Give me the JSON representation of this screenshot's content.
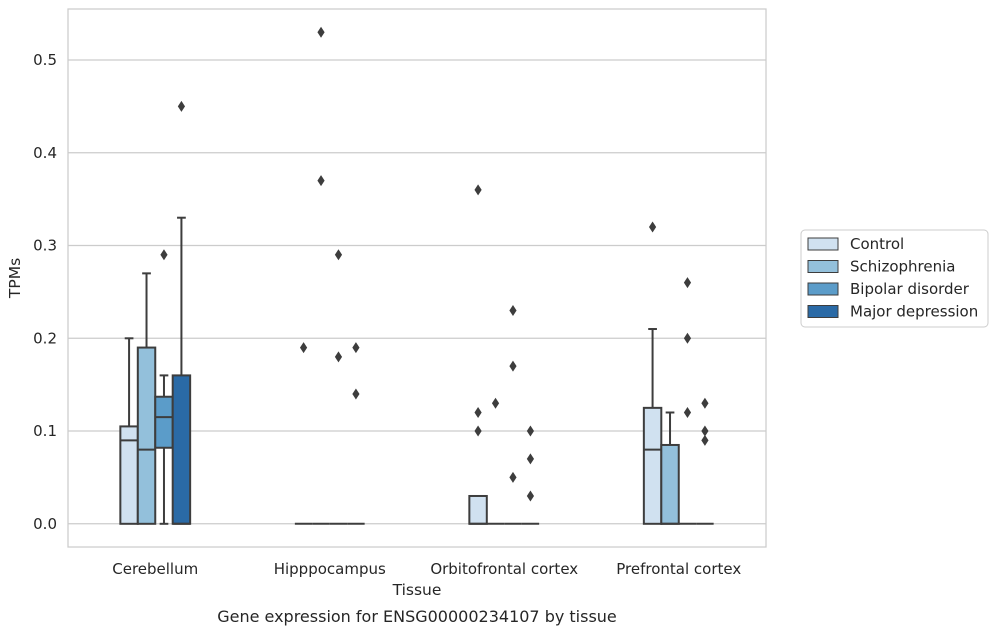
{
  "chart_data": {
    "type": "box",
    "title": "",
    "caption": "Gene expression for ENSG00000234107 by tissue",
    "xlabel": "Tissue",
    "ylabel": "TPMs",
    "ylim": [
      -0.025,
      0.555
    ],
    "yticks": [
      0.0,
      0.1,
      0.2,
      0.3,
      0.4,
      0.5
    ],
    "ytick_labels": [
      "0.0",
      "0.1",
      "0.2",
      "0.3",
      "0.4",
      "0.5"
    ],
    "grid": "horizontal",
    "legend_position": "right",
    "categories": [
      "Cerebellum",
      "Hipppocampus",
      "Orbitofrontal cortex",
      "Prefrontal cortex"
    ],
    "series": [
      {
        "name": "Control",
        "color": "#d0e1f0",
        "boxes": [
          {
            "q1": 0.0,
            "median": 0.09,
            "q3": 0.105,
            "whisker_low": 0.0,
            "whisker_high": 0.2,
            "outliers": []
          },
          {
            "q1": 0.0,
            "median": 0.0,
            "q3": 0.0,
            "whisker_low": 0.0,
            "whisker_high": 0.0,
            "outliers": [
              0.19
            ]
          },
          {
            "q1": 0.0,
            "median": 0.0,
            "q3": 0.03,
            "whisker_low": 0.0,
            "whisker_high": 0.03,
            "outliers": [
              0.12,
              0.1,
              0.36
            ]
          },
          {
            "q1": 0.0,
            "median": 0.08,
            "q3": 0.125,
            "whisker_low": 0.0,
            "whisker_high": 0.21,
            "outliers": [
              0.32
            ]
          }
        ]
      },
      {
        "name": "Schizophrenia",
        "color": "#93c0db",
        "boxes": [
          {
            "q1": 0.0,
            "median": 0.08,
            "q3": 0.19,
            "whisker_low": 0.0,
            "whisker_high": 0.27,
            "outliers": []
          },
          {
            "q1": 0.0,
            "median": 0.0,
            "q3": 0.0,
            "whisker_low": 0.0,
            "whisker_high": 0.0,
            "outliers": [
              0.53,
              0.37
            ]
          },
          {
            "q1": 0.0,
            "median": 0.0,
            "q3": 0.0,
            "whisker_low": 0.0,
            "whisker_high": 0.0,
            "outliers": [
              0.13
            ]
          },
          {
            "q1": 0.0,
            "median": 0.0,
            "q3": 0.085,
            "whisker_low": 0.0,
            "whisker_high": 0.12,
            "outliers": []
          }
        ]
      },
      {
        "name": "Bipolar disorder",
        "color": "#5b9cc9",
        "boxes": [
          {
            "q1": 0.082,
            "median": 0.115,
            "q3": 0.137,
            "whisker_low": 0.0,
            "whisker_high": 0.16,
            "outliers": [
              0.29
            ]
          },
          {
            "q1": 0.0,
            "median": 0.0,
            "q3": 0.0,
            "whisker_low": 0.0,
            "whisker_high": 0.0,
            "outliers": [
              0.29,
              0.18
            ]
          },
          {
            "q1": 0.0,
            "median": 0.0,
            "q3": 0.0,
            "whisker_low": 0.0,
            "whisker_high": 0.0,
            "outliers": [
              0.23,
              0.17,
              0.05
            ]
          },
          {
            "q1": 0.0,
            "median": 0.0,
            "q3": 0.0,
            "whisker_low": 0.0,
            "whisker_high": 0.0,
            "outliers": [
              0.26,
              0.2,
              0.12
            ]
          }
        ]
      },
      {
        "name": "Major depression",
        "color": "#2a6aa6",
        "boxes": [
          {
            "q1": 0.0,
            "median": 0.0,
            "q3": 0.16,
            "whisker_low": 0.0,
            "whisker_high": 0.33,
            "outliers": [
              0.45
            ]
          },
          {
            "q1": 0.0,
            "median": 0.0,
            "q3": 0.0,
            "whisker_low": 0.0,
            "whisker_high": 0.0,
            "outliers": [
              0.19,
              0.14
            ]
          },
          {
            "q1": 0.0,
            "median": 0.0,
            "q3": 0.0,
            "whisker_low": 0.0,
            "whisker_high": 0.0,
            "outliers": [
              0.1,
              0.07,
              0.03
            ]
          },
          {
            "q1": 0.0,
            "median": 0.0,
            "q3": 0.0,
            "whisker_low": 0.0,
            "whisker_high": 0.0,
            "outliers": [
              0.13,
              0.1,
              0.09
            ]
          }
        ]
      }
    ]
  }
}
